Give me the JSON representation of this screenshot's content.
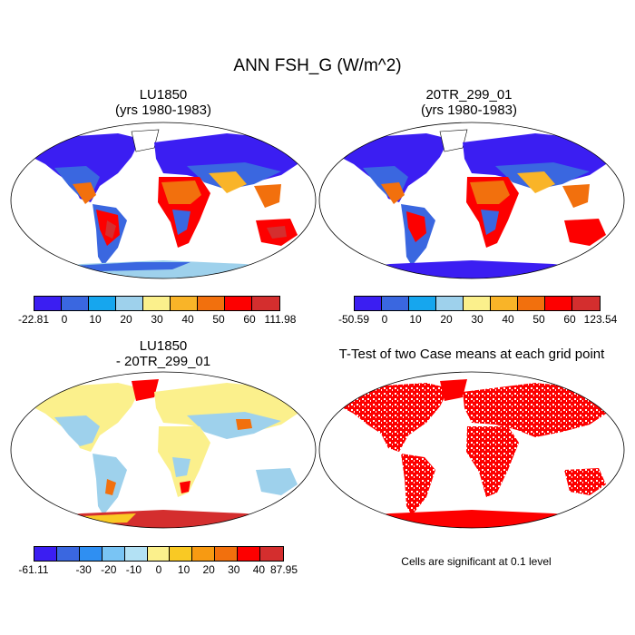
{
  "figure": {
    "title": "ANN FSH_G (W/m^2)",
    "significance_note": "Cells are significant at 0.1 level"
  },
  "panels": [
    {
      "title_line1": "LU1850",
      "title_line2": "(yrs 1980-1983)",
      "colorbar": {
        "labels": [
          "-22.81",
          "0",
          "10",
          "20",
          "30",
          "40",
          "50",
          "60",
          "111.98"
        ],
        "colors": [
          "#3b1ef2",
          "#3a67e0",
          "#16a6ee",
          "#9ed1ec",
          "#fbf08c",
          "#f9b428",
          "#f2700d",
          "#fd0000",
          "#d42e2e"
        ]
      }
    },
    {
      "title_line1": "20TR_299_01",
      "title_line2": "(yrs 1980-1983)",
      "colorbar": {
        "labels": [
          "-50.59",
          "0",
          "10",
          "20",
          "30",
          "40",
          "50",
          "60",
          "123.54"
        ],
        "colors": [
          "#3b1ef2",
          "#3a67e0",
          "#16a6ee",
          "#9ed1ec",
          "#fbf08c",
          "#f9b428",
          "#f2700d",
          "#fd0000",
          "#d42e2e"
        ]
      }
    },
    {
      "title_line1": "LU1850",
      "title_line2": "- 20TR_299_01",
      "colorbar": {
        "labels": [
          "-61.11",
          "",
          "-30",
          "-20",
          "-10",
          "0",
          "10",
          "20",
          "30",
          "40",
          "87.95"
        ],
        "colors": [
          "#3b1ef2",
          "#3a67e0",
          "#2f8ff2",
          "#79c4f4",
          "#b3e1f4",
          "#fbf08c",
          "#f9c924",
          "#f79a12",
          "#f2700d",
          "#fd0000",
          "#d42e2e"
        ]
      }
    },
    {
      "title_line1": "T-Test of two Case means at each grid point",
      "title_line2": ""
    }
  ]
}
